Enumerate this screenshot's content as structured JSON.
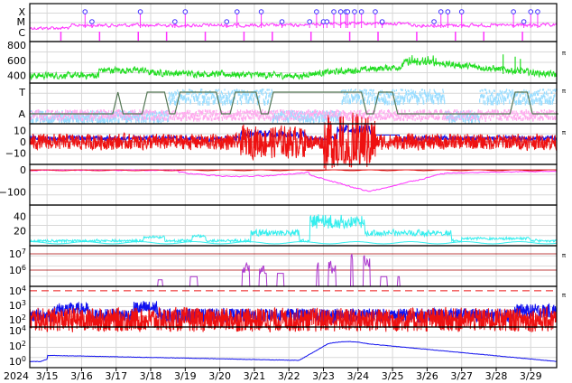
{
  "colors": {
    "magenta": "#ff33ff",
    "green": "#22dd22",
    "lightblue": "#99ddff",
    "pink": "#ffaaee",
    "gray": "#557755",
    "blue": "#1111ee",
    "red": "#ee1111",
    "darkred": "#aa0000",
    "purple": "#aa33cc",
    "cyan": "#33eeee",
    "grid": "#d8d8d8"
  },
  "chart_data": {
    "type": "line",
    "x_start": "2024-03-14T12:00",
    "x_end": "2024-03-29T18:00",
    "x_ticks": [
      "3/15",
      "3/16",
      "3/17",
      "3/18",
      "3/19",
      "3/20",
      "3/21",
      "3/22",
      "3/23",
      "3/24",
      "3/25",
      "3/26",
      "3/27",
      "3/28",
      "3/29"
    ],
    "x_year_label": "2024",
    "panels": [
      {
        "id": "flare-class",
        "y_categories": [
          "X",
          "M",
          "C"
        ],
        "flare_markers": [
          [
            16.1,
            "X"
          ],
          [
            16.3,
            "M"
          ],
          [
            17.7,
            "X"
          ],
          [
            18.7,
            "M"
          ],
          [
            19.0,
            "X"
          ],
          [
            20.2,
            "M"
          ],
          [
            20.5,
            "X"
          ],
          [
            21.2,
            "X"
          ],
          [
            21.8,
            "M"
          ],
          [
            22.6,
            "M"
          ],
          [
            22.8,
            "X"
          ],
          [
            23.0,
            "M"
          ],
          [
            23.1,
            "M"
          ],
          [
            23.3,
            "X"
          ],
          [
            23.5,
            "X"
          ],
          [
            23.65,
            "X"
          ],
          [
            23.7,
            "X"
          ],
          [
            23.9,
            "X"
          ],
          [
            24.1,
            "X"
          ],
          [
            24.5,
            "X"
          ],
          [
            24.7,
            "M"
          ],
          [
            26.2,
            "M"
          ],
          [
            26.4,
            "X"
          ],
          [
            26.6,
            "X"
          ],
          [
            27.0,
            "X"
          ],
          [
            28.5,
            "X"
          ],
          [
            28.8,
            "M"
          ],
          [
            29.0,
            "X"
          ],
          [
            29.2,
            "X"
          ]
        ]
      },
      {
        "id": "solar-wind-speed",
        "y_ticks": [
          "800",
          "600",
          "400"
        ],
        "side_label": "π"
      },
      {
        "id": "imf-sector",
        "y_categories": [
          "T",
          "A"
        ],
        "side_label": "π",
        "sector_transitions": [
          [
            14.5,
            "A"
          ],
          [
            16.9,
            "A"
          ],
          [
            17.05,
            "T"
          ],
          [
            17.2,
            "A"
          ],
          [
            17.75,
            "A"
          ],
          [
            17.9,
            "T"
          ],
          [
            18.4,
            "T"
          ],
          [
            18.55,
            "A"
          ],
          [
            18.7,
            "A"
          ],
          [
            18.85,
            "T"
          ],
          [
            19.9,
            "T"
          ],
          [
            20.05,
            "A"
          ],
          [
            20.3,
            "A"
          ],
          [
            20.45,
            "T"
          ],
          [
            21.05,
            "T"
          ],
          [
            21.2,
            "A"
          ],
          [
            21.4,
            "A"
          ],
          [
            21.55,
            "T"
          ],
          [
            24.1,
            "T"
          ],
          [
            24.25,
            "A"
          ],
          [
            24.45,
            "A"
          ],
          [
            24.6,
            "T"
          ],
          [
            25.0,
            "T"
          ],
          [
            25.15,
            "A"
          ],
          [
            28.4,
            "A"
          ],
          [
            28.55,
            "T"
          ],
          [
            28.9,
            "T"
          ],
          [
            29.05,
            "A"
          ],
          [
            29.8,
            "A"
          ]
        ]
      },
      {
        "id": "imf-bz",
        "y_ticks": [
          "10",
          "0",
          "−10"
        ],
        "side_label": "π"
      },
      {
        "id": "dst",
        "y_ticks": [
          "0",
          "−100"
        ]
      },
      {
        "id": "kp",
        "y_ticks": [
          "40",
          "20"
        ]
      },
      {
        "id": "electron-flux",
        "y_ticks": [
          "10^7",
          "10^6"
        ],
        "side_label": "π"
      },
      {
        "id": "proton-flux",
        "y_ticks": [
          "10^4",
          "10^3",
          "10^2"
        ],
        "side_label": "π"
      },
      {
        "id": "neutron",
        "y_ticks": [
          "10^4",
          "10^2",
          "10^0"
        ]
      }
    ]
  }
}
